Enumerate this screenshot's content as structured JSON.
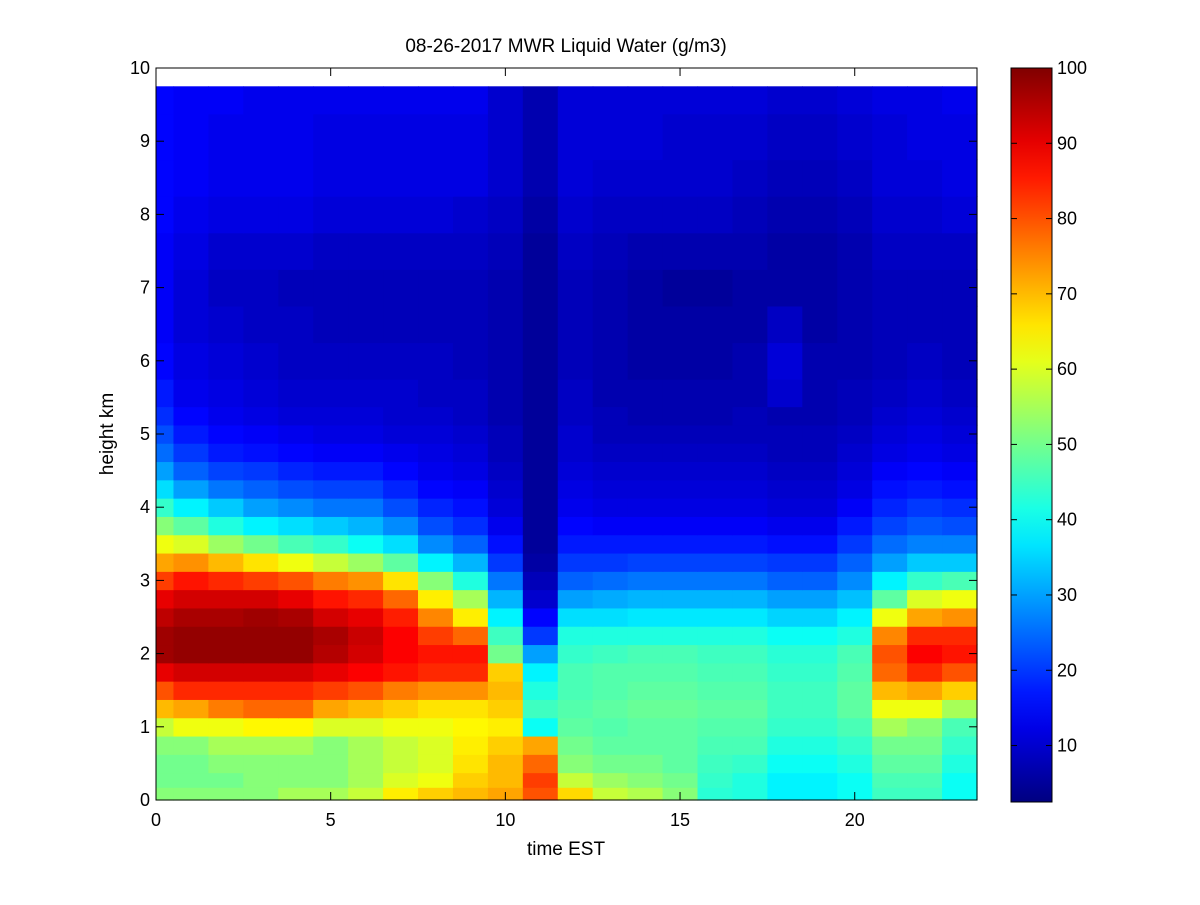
{
  "chart_data": {
    "type": "heatmap",
    "title": "08-26-2017 MWR Liquid Water (g/m3)",
    "xlabel": "time EST",
    "ylabel": "height km",
    "xlim": [
      0,
      23.5
    ],
    "ylim": [
      0,
      10
    ],
    "x_ticks": [
      0,
      5,
      10,
      15,
      20
    ],
    "y_ticks": [
      0,
      1,
      2,
      3,
      4,
      5,
      6,
      7,
      8,
      9,
      10
    ],
    "colorbar": {
      "range": [
        2.5,
        100
      ],
      "ticks": [
        10,
        20,
        30,
        40,
        50,
        60,
        70,
        80,
        90,
        100
      ],
      "colormap": "jet"
    },
    "grid": false,
    "x": [
      0,
      1,
      2,
      3,
      4,
      5,
      6,
      7,
      8,
      9,
      10,
      11,
      12,
      13,
      14,
      15,
      16,
      17,
      18,
      19,
      20,
      21,
      22,
      23
    ],
    "y": [
      0,
      0.1,
      0.25,
      0.5,
      0.75,
      1.0,
      1.25,
      1.5,
      1.75,
      2.0,
      2.25,
      2.5,
      2.75,
      3.0,
      3.25,
      3.5,
      3.75,
      4.0,
      4.25,
      4.5,
      4.75,
      5.0,
      5.25,
      5.5,
      6.0,
      6.5,
      7.0,
      7.5,
      8.0,
      8.5,
      9.0,
      9.75
    ],
    "z": [
      [
        52,
        52,
        52,
        52,
        55,
        55,
        58,
        65,
        68,
        70,
        72,
        80,
        67,
        58,
        56,
        52,
        43,
        42,
        38,
        38,
        40,
        45,
        45,
        40
      ],
      [
        52,
        52,
        52,
        52,
        55,
        55,
        58,
        65,
        68,
        70,
        72,
        80,
        67,
        58,
        56,
        52,
        43,
        42,
        38,
        38,
        40,
        45,
        45,
        40
      ],
      [
        50,
        50,
        50,
        52,
        52,
        52,
        55,
        60,
        62,
        68,
        70,
        82,
        58,
        54,
        52,
        50,
        44,
        42,
        38,
        38,
        40,
        46,
        46,
        40
      ],
      [
        50,
        50,
        52,
        52,
        52,
        52,
        55,
        58,
        60,
        66,
        70,
        78,
        52,
        50,
        50,
        48,
        45,
        44,
        40,
        40,
        42,
        48,
        48,
        42
      ],
      [
        52,
        52,
        55,
        55,
        55,
        52,
        55,
        58,
        60,
        65,
        68,
        72,
        50,
        48,
        48,
        48,
        46,
        46,
        42,
        42,
        44,
        50,
        50,
        44
      ],
      [
        58,
        62,
        62,
        64,
        64,
        60,
        60,
        62,
        62,
        64,
        65,
        40,
        48,
        47,
        48,
        48,
        47,
        47,
        44,
        44,
        46,
        55,
        52,
        46
      ],
      [
        70,
        72,
        76,
        78,
        78,
        72,
        70,
        68,
        66,
        66,
        68,
        45,
        47,
        48,
        49,
        49,
        48,
        48,
        45,
        45,
        48,
        62,
        62,
        55
      ],
      [
        80,
        84,
        84,
        84,
        84,
        82,
        80,
        76,
        74,
        74,
        70,
        42,
        46,
        47,
        48,
        48,
        47,
        47,
        45,
        45,
        48,
        70,
        72,
        68
      ],
      [
        90,
        92,
        92,
        92,
        92,
        90,
        88,
        86,
        84,
        84,
        68,
        38,
        46,
        47,
        47,
        47,
        46,
        46,
        44,
        44,
        47,
        78,
        84,
        80
      ],
      [
        97,
        98,
        98,
        98,
        98,
        95,
        92,
        88,
        86,
        86,
        50,
        30,
        44,
        45,
        46,
        46,
        45,
        45,
        43,
        43,
        46,
        80,
        88,
        86
      ],
      [
        97,
        98,
        98,
        98,
        98,
        96,
        93,
        88,
        82,
        78,
        45,
        20,
        42,
        42,
        42,
        42,
        42,
        42,
        40,
        40,
        42,
        75,
        84,
        84
      ],
      [
        94,
        96,
        96,
        97,
        96,
        92,
        90,
        85,
        75,
        65,
        38,
        15,
        36,
        36,
        37,
        37,
        37,
        37,
        35,
        35,
        38,
        62,
        72,
        74
      ],
      [
        90,
        92,
        92,
        92,
        90,
        86,
        84,
        78,
        65,
        55,
        32,
        10,
        30,
        31,
        32,
        32,
        32,
        32,
        30,
        30,
        33,
        48,
        60,
        62
      ],
      [
        82,
        86,
        84,
        82,
        80,
        76,
        74,
        66,
        52,
        42,
        26,
        8,
        24,
        25,
        26,
        26,
        26,
        26,
        24,
        24,
        28,
        38,
        44,
        46
      ],
      [
        72,
        74,
        70,
        66,
        62,
        58,
        54,
        48,
        38,
        32,
        20,
        6,
        20,
        20,
        21,
        21,
        21,
        21,
        20,
        20,
        24,
        30,
        34,
        34
      ],
      [
        62,
        60,
        54,
        50,
        46,
        44,
        40,
        36,
        28,
        24,
        16,
        5,
        17,
        17,
        17,
        17,
        17,
        17,
        16,
        16,
        20,
        25,
        27,
        27
      ],
      [
        52,
        48,
        42,
        38,
        36,
        34,
        32,
        28,
        22,
        19,
        13,
        5,
        15,
        14,
        14,
        14,
        14,
        14,
        13,
        13,
        17,
        21,
        23,
        22
      ],
      [
        44,
        38,
        34,
        30,
        28,
        26,
        26,
        22,
        18,
        16,
        11,
        5,
        13,
        12,
        12,
        12,
        12,
        12,
        11,
        11,
        14,
        18,
        20,
        19
      ],
      [
        36,
        30,
        26,
        24,
        22,
        21,
        21,
        18,
        15,
        14,
        10,
        5,
        12,
        11,
        11,
        11,
        11,
        11,
        10,
        10,
        12,
        16,
        17,
        16
      ],
      [
        30,
        24,
        21,
        20,
        18,
        17,
        17,
        15,
        13,
        12,
        9,
        5,
        11,
        10,
        10,
        10,
        10,
        10,
        9,
        9,
        11,
        14,
        15,
        14
      ],
      [
        25,
        20,
        17,
        16,
        15,
        14,
        14,
        13,
        12,
        11,
        8,
        5,
        10,
        9,
        9,
        9,
        9,
        9,
        8,
        8,
        10,
        12,
        13,
        12
      ],
      [
        22,
        17,
        15,
        14,
        13,
        12,
        12,
        11,
        11,
        10,
        8,
        5,
        10,
        8,
        8,
        8,
        8,
        8,
        8,
        8,
        9,
        11,
        12,
        11
      ],
      [
        19,
        15,
        13,
        12,
        11,
        11,
        11,
        10,
        10,
        9,
        7,
        5,
        9,
        8,
        7,
        7,
        7,
        8,
        7,
        7,
        8,
        10,
        11,
        10
      ],
      [
        17,
        13,
        12,
        11,
        10,
        10,
        10,
        10,
        9,
        9,
        7,
        5,
        9,
        7,
        7,
        7,
        7,
        7,
        10,
        7,
        8,
        9,
        10,
        9
      ],
      [
        15,
        12,
        11,
        10,
        9,
        9,
        9,
        9,
        9,
        8,
        7,
        5,
        8,
        7,
        6,
        6,
        6,
        7,
        11,
        7,
        7,
        8,
        9,
        8
      ],
      [
        14,
        11,
        10,
        9,
        9,
        8,
        8,
        8,
        8,
        8,
        7,
        5,
        8,
        7,
        6,
        6,
        6,
        6,
        9,
        6,
        7,
        8,
        8,
        8
      ],
      [
        14,
        11,
        9,
        9,
        8,
        8,
        8,
        8,
        8,
        8,
        7,
        5,
        8,
        7,
        6,
        5,
        5,
        6,
        6,
        6,
        7,
        8,
        8,
        8
      ],
      [
        14,
        12,
        10,
        10,
        10,
        9,
        9,
        9,
        9,
        9,
        8,
        5,
        9,
        8,
        7,
        7,
        7,
        7,
        6,
        6,
        7,
        9,
        9,
        9
      ],
      [
        15,
        13,
        12,
        12,
        12,
        11,
        11,
        11,
        11,
        10,
        9,
        6,
        10,
        9,
        9,
        9,
        9,
        8,
        7,
        7,
        8,
        10,
        10,
        11
      ],
      [
        15,
        14,
        13,
        13,
        13,
        12,
        12,
        12,
        12,
        12,
        10,
        7,
        11,
        10,
        10,
        10,
        10,
        9,
        8,
        8,
        9,
        11,
        11,
        12
      ],
      [
        15,
        14,
        13,
        13,
        13,
        12,
        12,
        12,
        12,
        12,
        10,
        7,
        11,
        11,
        11,
        10,
        10,
        10,
        9,
        9,
        10,
        11,
        12,
        12
      ],
      [
        15,
        14,
        14,
        13,
        13,
        13,
        13,
        13,
        13,
        13,
        10,
        7,
        11,
        11,
        11,
        11,
        11,
        11,
        10,
        10,
        11,
        12,
        12,
        13
      ]
    ]
  }
}
